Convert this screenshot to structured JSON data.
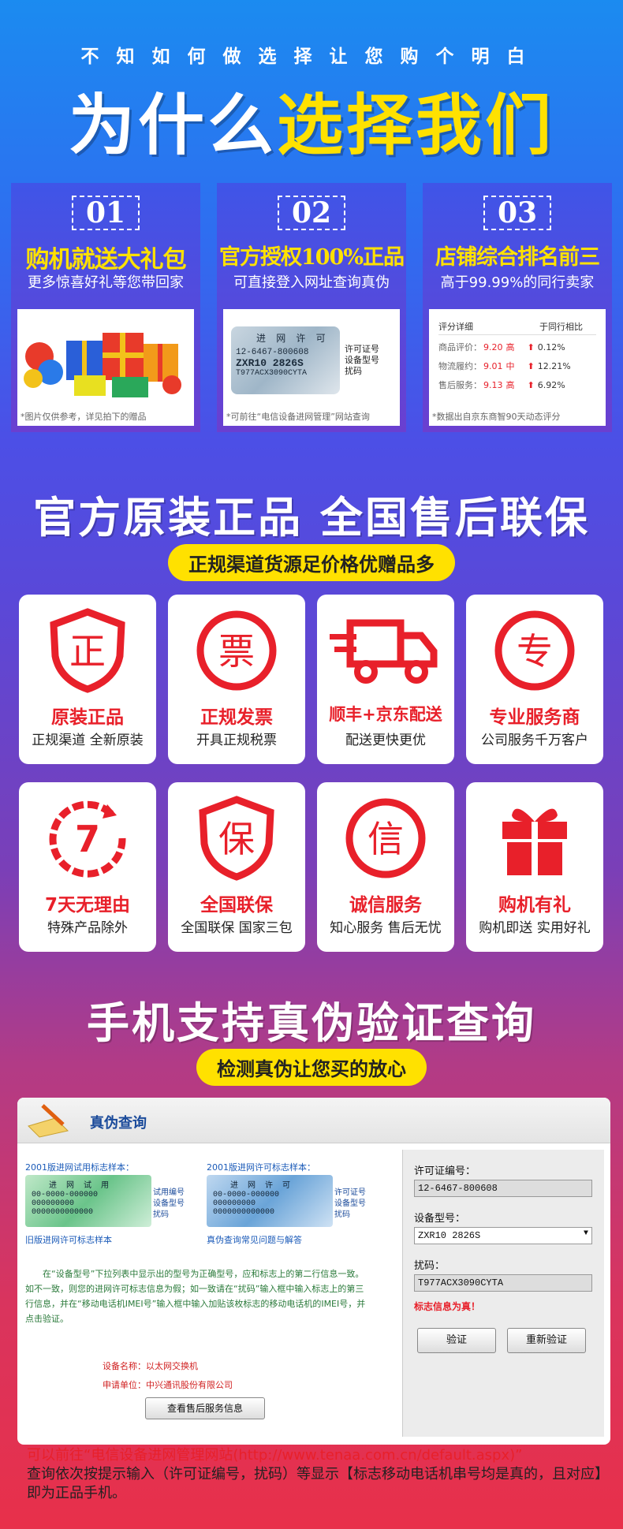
{
  "header": {
    "subtitle": "不知如何做选择让您购个明白",
    "title_white": "为什么",
    "title_yellow": "选择我们"
  },
  "cards": [
    {
      "num": "01",
      "title": "购机就送大礼包",
      "desc": "更多惊喜好礼等您带回家",
      "caption": "*图片仅供参考，详见拍下的赠品"
    },
    {
      "num": "02",
      "title": "官方授权100%正品",
      "desc": "可直接登入网址查询真伪",
      "caption": "*可前往“电信设备进网管理”网站查询",
      "label": {
        "l1": "进 网 许 可",
        "l2": "12-6467-800608",
        "l3": "ZXR10 2826S",
        "l4": "T977ACX3090CYTA",
        "side": [
          "许可证号",
          "设备型号",
          "扰码"
        ]
      }
    },
    {
      "num": "03",
      "title": "店铺综合排名前三",
      "desc": "高于99.99%的同行卖家",
      "caption": "*数据出自京东商智90天动态评分",
      "rating": {
        "head_left": "评分详细",
        "head_right": "于同行相比",
        "rows": [
          {
            "name": "商品评价：",
            "score": "9.20",
            "level": "高",
            "pct": "0.12%"
          },
          {
            "name": "物流履约：",
            "score": "9.01",
            "level": "中",
            "pct": "12.21%"
          },
          {
            "name": "售后服务：",
            "score": "9.13",
            "level": "高",
            "pct": "6.92%"
          }
        ]
      }
    }
  ],
  "section2": {
    "title": "官方原装正品 全国售后联保",
    "pill": "正规渠道货源足价格优赠品多"
  },
  "tiles": [
    {
      "glyph": "正",
      "title": "原装正品",
      "desc": "正规渠道 全新原装"
    },
    {
      "glyph": "票",
      "title": "正规发票",
      "desc": "开具正规税票"
    },
    {
      "glyph": "",
      "title": "顺丰+京东配送",
      "desc": "配送更快更优"
    },
    {
      "glyph": "专",
      "title": "专业服务商",
      "desc": "公司服务千万客户"
    },
    {
      "glyph": "7",
      "title": "7天无理由",
      "desc": "特殊产品除外"
    },
    {
      "glyph": "保",
      "title": "全国联保",
      "desc": "全国联保 国家三包"
    },
    {
      "glyph": "信",
      "title": "诚信服务",
      "desc": "知心服务 售后无忧"
    },
    {
      "glyph": "",
      "title": "购机有礼",
      "desc": "购机即送 实用好礼"
    }
  ],
  "section3": {
    "title": "手机支持真伪验证查询",
    "pill": "检测真伪让您买的放心"
  },
  "panel": {
    "header": "真伪查询",
    "sample1_title": "2001版进网试用标志样本：",
    "sample1_caption": "旧版进网许可标志样本",
    "sample1_label": {
      "l1": "进 网 试 用",
      "l2": "00-0000-000000",
      "l3": "000000000",
      "l4": "0000000000000",
      "side": [
        "试用编号",
        "设备型号",
        "扰码"
      ]
    },
    "sample2_title": "2001版进网许可标志样本：",
    "sample2_caption": "真伪查询常见问题与解答",
    "sample2_label": {
      "l1": "进 网 许 可",
      "l2": "00-0000-000000",
      "l3": "000000000",
      "l4": "0000000000000",
      "side": [
        "许可证号",
        "设备型号",
        "扰码"
      ]
    },
    "instructions": "在“设备型号”下拉列表中显示出的型号为正确型号，应和标志上的第二行信息一致。如不一致，则您的进网许可标志信息为假；如一致请在“扰码”输入框中输入标志上的第三行信息，并在“移动电话机IMEI号”输入框中输入加贴该枚标志的移动电话机的IMEI号，并点击验证。",
    "device_name_label": "设备名称：",
    "device_name": "以太网交换机",
    "applicant_label": "申请单位：",
    "applicant": "中兴通讯股份有限公司",
    "service_btn": "查看售后服务信息",
    "license_label": "许可证编号：",
    "license_value": "12-6467-800608",
    "model_label": "设备型号：",
    "model_value": "ZXR10 2826S",
    "code_label": "扰码：",
    "code_value": "T977ACX3090CYTA",
    "result": "标志信息为真！",
    "verify_btn": "验证",
    "reverify_btn": "重新验证"
  },
  "footer": {
    "red": "可以前往“电信设备进网管理网站(http://www.tenaa.com.cn/default.aspx)”",
    "black": "查询依次按提示输入（许可证编号，扰码）等显示【标志移动电话机串号均是真的，且对应】即为正品手机。"
  },
  "colors": {
    "red": "#e8202a",
    "yellow": "#ffe100"
  }
}
